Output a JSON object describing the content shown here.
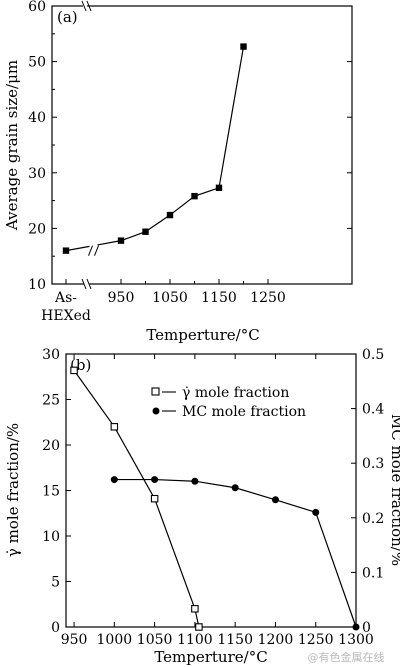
{
  "chart_data": [
    {
      "type": "line",
      "panel_label": "(a)",
      "xlabel": "Temperture/°C",
      "ylabel": "Average grain size/μm",
      "ylim": [
        10,
        60
      ],
      "y_ticks": [
        10,
        20,
        30,
        40,
        50,
        60
      ],
      "x_tick_labels": [
        "As-",
        "HEXed",
        "950",
        "1050",
        "1150",
        "1250"
      ],
      "axis_break": "between As-HEXed and 950",
      "series": [
        {
          "marker": "filled-square",
          "x": [
            "As-HEXed",
            950,
            1000,
            1050,
            1100,
            1150,
            1200
          ],
          "values": [
            16,
            17.8,
            19.4,
            22.4,
            25.8,
            27.3,
            52.7
          ]
        }
      ]
    },
    {
      "type": "line",
      "panel_label": "(b)",
      "xlabel": "Temperture/°C",
      "ylabel_left": "γ̇ mole fraction/%",
      "ylabel_right": "MC mole fraction/%",
      "xlim": [
        940,
        1300
      ],
      "x_ticks": [
        950,
        1000,
        1050,
        1100,
        1150,
        1200,
        1250,
        1300
      ],
      "ylim_left": [
        0,
        30
      ],
      "y_ticks_left": [
        0,
        5,
        10,
        15,
        20,
        25,
        30
      ],
      "ylim_right": [
        0,
        0.5
      ],
      "y_ticks_right": [
        "0",
        "0.1",
        "0.2",
        "0.3",
        "0.4",
        "0.5"
      ],
      "legend_position": "top-right",
      "series": [
        {
          "name": "γ̇ mole fraction",
          "marker": "open-square",
          "axis": "left",
          "x": [
            950,
            1000,
            1050,
            1100,
            1105
          ],
          "values": [
            28.2,
            22,
            14.1,
            2,
            0
          ]
        },
        {
          "name": "MC mole fraction",
          "marker": "filled-circle",
          "axis": "right",
          "x": [
            1000,
            1050,
            1100,
            1150,
            1200,
            1250,
            1300
          ],
          "values": [
            0.27,
            0.27,
            0.267,
            0.255,
            0.233,
            0.21,
            0
          ]
        }
      ]
    }
  ],
  "watermark": "@有色金属在线"
}
